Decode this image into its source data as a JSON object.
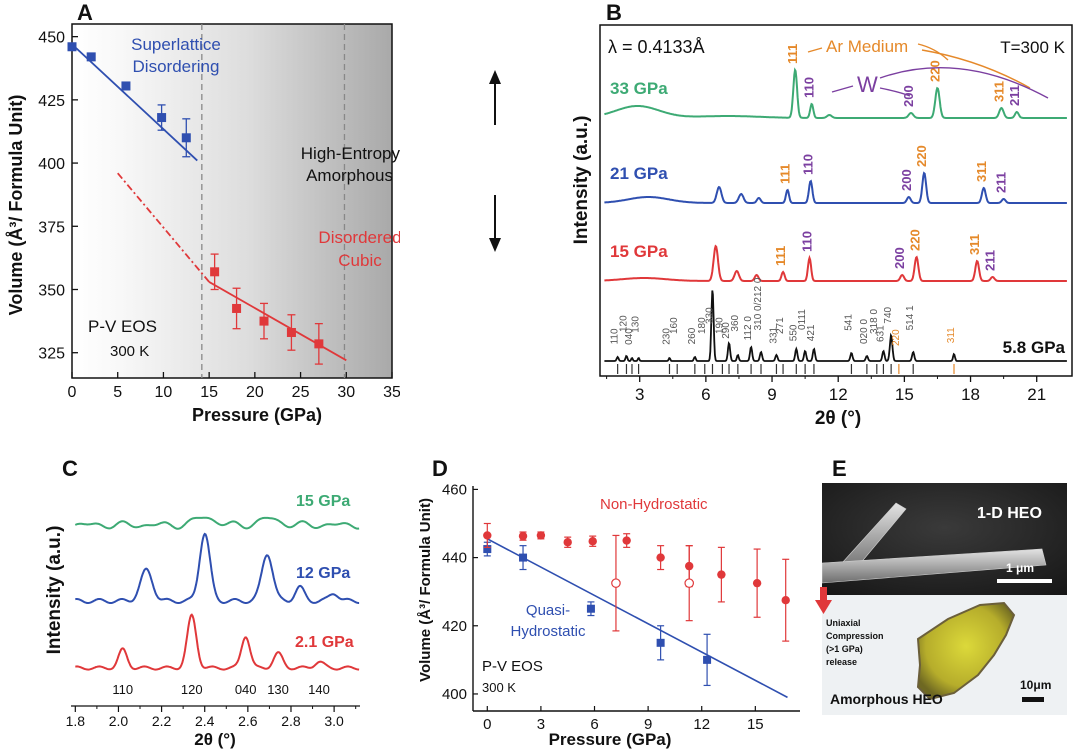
{
  "panels": {
    "A": {
      "label": "A",
      "ylabel": "Volume (Å³/ Formula Unit)",
      "xlabel": "Pressure (GPa)",
      "xlim": [
        0,
        35
      ],
      "ylim": [
        315,
        455
      ],
      "xticks": [
        0,
        5,
        10,
        15,
        20,
        25,
        30,
        35
      ],
      "yticks": [
        325,
        350,
        375,
        400,
        425,
        450
      ],
      "dashed_lines_x": [
        14.2,
        29.8
      ],
      "annotations": [
        "Superlattice",
        "Disordering",
        "High-Entropy",
        "Amorphous",
        "Disordered",
        "Cubic",
        "P-V EOS",
        "300 K"
      ],
      "colors": {
        "blue": "#2f4fb0",
        "red": "#e0383a"
      }
    },
    "B": {
      "label": "B",
      "ylabel": "Intensity (a.u.)",
      "xlabel": "2θ (°)",
      "xticks": [
        3,
        6,
        9,
        12,
        15,
        18,
        21
      ],
      "xlim": [
        1.2,
        22.6
      ],
      "header_left": "λ = 0.4133Å",
      "header_right": "T=300 K",
      "ar_label": "Ar Medium",
      "w_label": "W",
      "pressures": [
        "33 GPa",
        "21 GPa",
        "15 GPa",
        "5.8 GPa"
      ],
      "colors": {
        "green": "#3daa74",
        "blue": "#2f4fb0",
        "red": "#e0383a",
        "black": "#111111",
        "orange": "#e5892a",
        "purple": "#7b3fa0"
      }
    },
    "C": {
      "label": "C",
      "ylabel": "Intensity (a.u.)",
      "xlabel": "2θ (°)",
      "xticks": [
        "1.8",
        "2.0",
        "2.2",
        "2.4",
        "2.6",
        "2.8",
        "3.0"
      ],
      "xlim": [
        1.78,
        3.12
      ],
      "pressures": [
        "15 GPa",
        "12 GPa",
        "2.1 GPa"
      ],
      "hkl": [
        {
          "label": "110",
          "x": 2.02
        },
        {
          "label": "120",
          "x": 2.34
        },
        {
          "label": "040",
          "x": 2.59
        },
        {
          "label": "130",
          "x": 2.74
        },
        {
          "label": "140",
          "x": 2.93
        }
      ]
    },
    "D": {
      "label": "D",
      "ylabel": "Volume (Å³/ Formula Unit)",
      "xlabel": "Pressure (GPa)",
      "xticks": [
        0,
        3,
        6,
        9,
        12,
        15
      ],
      "yticks": [
        400,
        420,
        440,
        460
      ],
      "xlim": [
        -0.8,
        17.5
      ],
      "ylim": [
        395,
        461
      ],
      "annotations": [
        "Non-Hydrostatic",
        "Quasi-",
        "Hydrostatic",
        "P-V EOS",
        "300 K"
      ]
    },
    "E": {
      "label": "E",
      "top_label": "1-D HEO",
      "scale_top": "1 μm",
      "compression_text": [
        "Uniaxial",
        "Compression",
        "(>1 GPa)",
        "release"
      ],
      "bottom_label": "Amorphous HEO",
      "scale_bottom": "10μm"
    }
  },
  "chart_data": [
    {
      "panel": "A",
      "type": "scatter",
      "xlabel": "Pressure (GPa)",
      "ylabel": "Volume (Å³/ Formula Unit)",
      "xlim": [
        0,
        35
      ],
      "ylim": [
        315,
        455
      ],
      "series": [
        {
          "color": "#2f4fb0",
          "x": [
            0,
            2.1,
            5.9,
            9.8,
            12.5
          ],
          "y": [
            446,
            442,
            430.5,
            418,
            410
          ],
          "err": [
            0,
            0,
            1.5,
            5,
            7.5
          ],
          "fit": {
            "x": [
              0,
              13.7
            ],
            "y": [
              447,
              401
            ]
          }
        },
        {
          "color": "#e0383a",
          "x": [
            15.6,
            18,
            21,
            24,
            27
          ],
          "y": [
            357,
            342.5,
            337.5,
            333,
            328.5
          ],
          "err": [
            7,
            8,
            7,
            7,
            8
          ],
          "fit": {
            "x": [
              15,
              30
            ],
            "y": [
              353,
              322
            ]
          },
          "extrapolation": {
            "x": [
              5,
              15
            ],
            "y": [
              396,
              353
            ]
          }
        }
      ]
    },
    {
      "panel": "B",
      "type": "line",
      "xlabel": "2θ (°)",
      "ylabel": "Intensity (a.u.)",
      "peak_labels": {
        "33 GPa": [
          {
            "label": "111",
            "x": 10.05,
            "color": "#e5892a"
          },
          {
            "label": "110",
            "x": 10.8,
            "color": "#7b3fa0"
          },
          {
            "label": "200",
            "x": 15.3,
            "color": "#7b3fa0"
          },
          {
            "label": "220",
            "x": 16.5,
            "color": "#e5892a"
          },
          {
            "label": "311",
            "x": 19.4,
            "color": "#e5892a"
          },
          {
            "label": "211",
            "x": 20.1,
            "color": "#7b3fa0"
          }
        ],
        "21 GPa": [
          {
            "label": "111",
            "x": 9.7,
            "color": "#e5892a"
          },
          {
            "label": "110",
            "x": 10.75,
            "color": "#7b3fa0"
          },
          {
            "label": "200",
            "x": 15.2,
            "color": "#7b3fa0"
          },
          {
            "label": "220",
            "x": 15.9,
            "color": "#e5892a"
          },
          {
            "label": "311",
            "x": 18.6,
            "color": "#e5892a"
          },
          {
            "label": "211",
            "x": 19.5,
            "color": "#7b3fa0"
          }
        ],
        "15 GPa": [
          {
            "label": "111",
            "x": 9.5,
            "color": "#e5892a"
          },
          {
            "label": "110",
            "x": 10.7,
            "color": "#7b3fa0"
          },
          {
            "label": "200",
            "x": 14.9,
            "color": "#7b3fa0"
          },
          {
            "label": "220",
            "x": 15.6,
            "color": "#e5892a"
          },
          {
            "label": "311",
            "x": 18.3,
            "color": "#e5892a"
          },
          {
            "label": "211",
            "x": 19.0,
            "color": "#7b3fa0"
          }
        ]
      },
      "hkl_5_8": [
        {
          "label": "110",
          "x": 2.0
        },
        {
          "label": "120",
          "x": 2.4
        },
        {
          "label": "040",
          "x": 2.65
        },
        {
          "label": "130",
          "x": 2.95
        },
        {
          "label": "230",
          "x": 4.35
        },
        {
          "label": "160",
          "x": 4.7
        },
        {
          "label": "260",
          "x": 5.5
        },
        {
          "label": "180",
          "x": 5.95
        },
        {
          "label": "330",
          "x": 6.3
        },
        {
          "label": "190",
          "x": 6.75
        },
        {
          "label": "290",
          "x": 7.05
        },
        {
          "label": "360",
          "x": 7.45
        },
        {
          "label": "112 0",
          "x": 8.05
        },
        {
          "label": "310 0/212 0",
          "x": 8.5
        },
        {
          "label": "331",
          "x": 9.2
        },
        {
          "label": "271",
          "x": 9.5
        },
        {
          "label": "550",
          "x": 10.1
        },
        {
          "label": "0111",
          "x": 10.5
        },
        {
          "label": "421",
          "x": 10.9
        },
        {
          "label": "541",
          "x": 12.6
        },
        {
          "label": "020 0",
          "x": 13.3
        },
        {
          "label": "318 0",
          "x": 13.75
        },
        {
          "label": "631",
          "x": 14.05
        },
        {
          "label": "740",
          "x": 14.4
        },
        {
          "label": "220",
          "x": 14.75,
          "color": "#e5892a"
        },
        {
          "label": "514 1",
          "x": 15.4
        },
        {
          "label": "311",
          "x": 17.25,
          "color": "#e5892a"
        }
      ]
    },
    {
      "panel": "C",
      "type": "line",
      "xlabel": "2θ (°)",
      "ylabel": "Intensity (a.u.)",
      "xlim": [
        1.78,
        3.12
      ],
      "series": [
        {
          "name": "2.1 GPa",
          "color": "#e0383a",
          "peaks": [
            [
              2.02,
              0.35,
              0.028
            ],
            [
              2.34,
              1.0,
              0.03
            ],
            [
              2.59,
              0.62,
              0.028
            ],
            [
              2.74,
              0.28,
              0.03
            ],
            [
              2.93,
              0.12,
              0.03
            ]
          ]
        },
        {
          "name": "12 GPa",
          "color": "#2f4fb0",
          "peaks": [
            [
              2.13,
              0.45,
              0.04
            ],
            [
              2.4,
              1.0,
              0.034
            ],
            [
              2.69,
              0.7,
              0.036
            ],
            [
              2.84,
              0.2,
              0.03
            ],
            [
              3.0,
              0.12,
              0.03
            ]
          ]
        },
        {
          "name": "15 GPa",
          "color": "#3daa74",
          "peaks": [
            [
              2.4,
              0.15,
              0.06
            ],
            [
              2.7,
              0.12,
              0.06
            ]
          ]
        }
      ]
    },
    {
      "panel": "D",
      "type": "scatter",
      "xlabel": "Pressure (GPa)",
      "ylabel": "Volume (Å³/ Formula Unit)",
      "xlim": [
        -0.8,
        17.5
      ],
      "ylim": [
        395,
        461
      ],
      "series": [
        {
          "color": "#2f4fb0",
          "marker": "square",
          "x": [
            0,
            2,
            5.8,
            9.7,
            12.3
          ],
          "y": [
            442.5,
            440,
            425,
            415,
            410
          ],
          "err": [
            2,
            3.5,
            2,
            5,
            7.5
          ],
          "fit": {
            "x": [
              0,
              16.8
            ],
            "y": [
              445.5,
              399
            ]
          }
        },
        {
          "color": "#e0383a",
          "marker": "circle",
          "x": [
            0,
            2,
            3,
            4.5,
            5.9,
            7.8,
            9.7,
            11.3,
            13.1,
            15.1,
            16.7
          ],
          "y": [
            446.5,
            446.3,
            446.5,
            444.5,
            444.8,
            445,
            440,
            437.5,
            435,
            432.5,
            427.5
          ],
          "err": [
            3.5,
            1.2,
            1,
            1.5,
            1.5,
            2,
            3.5,
            6,
            8,
            10,
            12
          ]
        },
        {
          "color": "#e0383a",
          "marker": "open-circle",
          "x": [
            7.2,
            11.3
          ],
          "y": [
            432.5,
            432.5
          ],
          "err": [
            14,
            11
          ]
        }
      ]
    }
  ]
}
